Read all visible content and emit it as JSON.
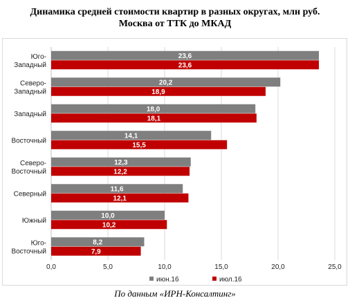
{
  "title_line1": "Динамика средней стоимости квартир в разных округах, млн руб.",
  "title_line2": "Москва от ТТК до МКАД",
  "source": "По данным «ИРН-Консалтинг»",
  "chart_data": {
    "type": "bar",
    "orientation": "horizontal",
    "categories": [
      [
        "Юго-",
        "Западный"
      ],
      [
        "Северо-",
        "Западный"
      ],
      [
        "Западный"
      ],
      [
        "Восточный"
      ],
      [
        "Северо-",
        "Восточный"
      ],
      [
        "Северный"
      ],
      [
        "Южный"
      ],
      [
        "Юго-",
        "Восточный"
      ]
    ],
    "series": [
      {
        "name": "июн.16",
        "color": "#7f7f7f",
        "values": [
          23.6,
          20.2,
          18.0,
          14.1,
          12.3,
          11.6,
          10.0,
          8.2
        ],
        "labels": [
          "23,6",
          "20,2",
          "18,0",
          "14,1",
          "12,3",
          "11,6",
          "10,0",
          "8,2"
        ]
      },
      {
        "name": "июл.16",
        "color": "#c00000",
        "values": [
          23.6,
          18.9,
          18.1,
          15.5,
          12.2,
          12.1,
          10.2,
          7.9
        ],
        "labels": [
          "23,6",
          "18,9",
          "18,1",
          "15,5",
          "12,2",
          "12,1",
          "10,2",
          "7,9"
        ]
      }
    ],
    "xlim": [
      0,
      25
    ],
    "xticks": [
      0,
      5,
      10,
      15,
      20,
      25
    ],
    "xtick_labels": [
      "0,0",
      "5,0",
      "10,0",
      "15,0",
      "20,0",
      "25,0"
    ],
    "grid": "vertical",
    "legend": "bottom"
  }
}
